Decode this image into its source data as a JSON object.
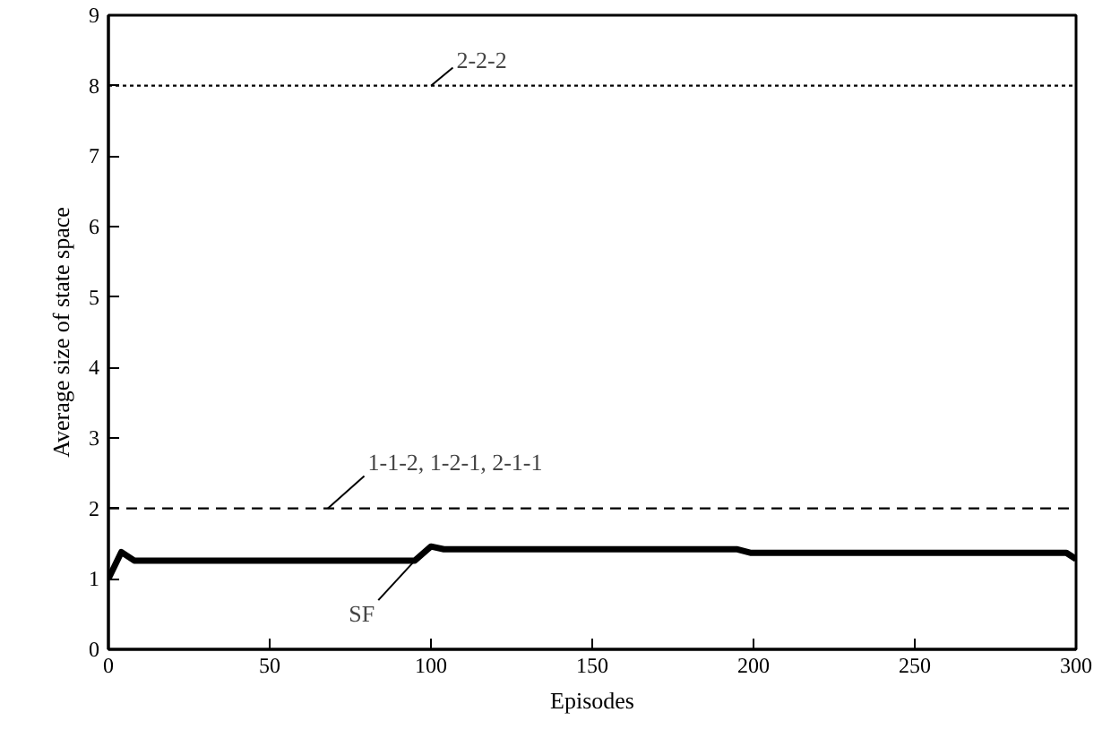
{
  "chart_data": {
    "type": "line",
    "xlabel": "Episodes",
    "ylabel": "Average size of state space",
    "xlim": [
      0,
      300
    ],
    "ylim": [
      0,
      9
    ],
    "xticks": [
      0,
      50,
      100,
      150,
      200,
      250,
      300
    ],
    "yticks": [
      0,
      1,
      2,
      3,
      4,
      5,
      6,
      7,
      8,
      9
    ],
    "marker": "none",
    "series": [
      {
        "color": "#000000",
        "line_style": "solid",
        "x": [
          0,
          4,
          8,
          95,
          100,
          104,
          195,
          199,
          297,
          300
        ],
        "values": [
          1.0,
          1.38,
          1.26,
          1.26,
          1.46,
          1.42,
          1.42,
          1.37,
          1.37,
          1.28
        ]
      },
      {
        "color": "#000000",
        "line_style": "dashed",
        "x": [
          0,
          300
        ],
        "values": [
          2,
          2
        ]
      },
      {
        "color": "#000000",
        "line_style": "dotted",
        "x": [
          0,
          300
        ],
        "values": [
          8,
          8
        ]
      }
    ],
    "annotations": [
      {
        "text": "2-2-2",
        "x": 100,
        "y": 8
      },
      {
        "text": "1-1-2, 1-2-1, 2-1-1",
        "x": 68,
        "y": 2
      },
      {
        "text": "SF",
        "x": 95,
        "y": 1.26
      }
    ]
  }
}
